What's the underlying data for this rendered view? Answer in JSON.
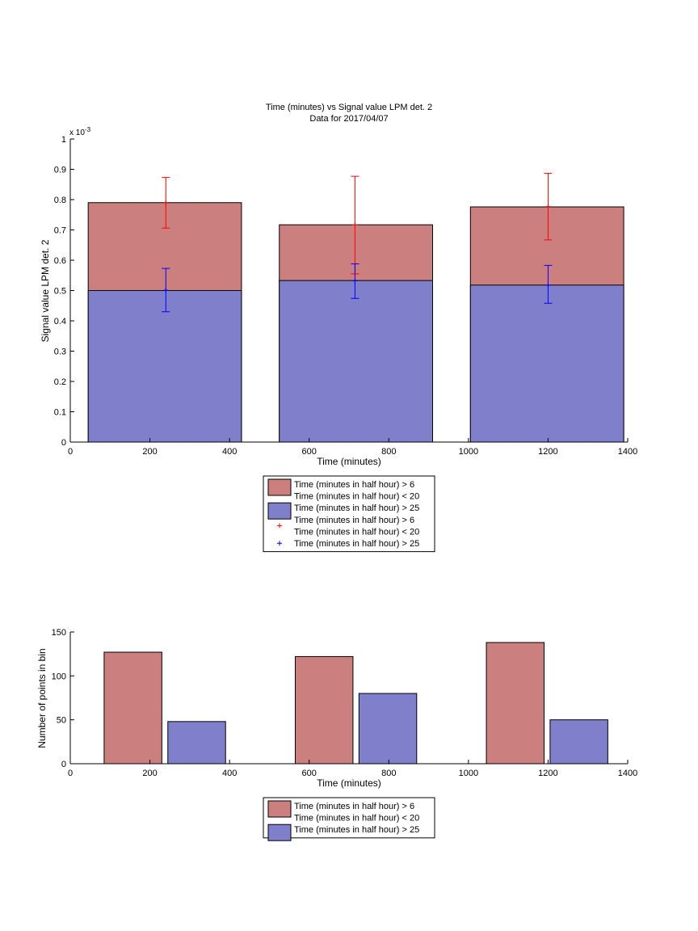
{
  "colors": {
    "red_bar": "#cc7f7f",
    "blue_bar": "#7f7fcc",
    "red_marker": "#ff0000",
    "blue_marker": "#0000ff"
  },
  "chart_data": [
    {
      "type": "bar",
      "subtype": "overlapping bars with error bars",
      "title": "Time (minutes) vs Signal value LPM det. 2",
      "subtitle": "Data for 2017/04/07",
      "xlabel": "Time (minutes)",
      "ylabel": "Signal value LPM det. 2",
      "y_multiplier_label": "x 10",
      "y_multiplier_exponent": "-3",
      "xlim": [
        0,
        1400
      ],
      "ylim": [
        0,
        1
      ],
      "x_ticks": [
        "0",
        "200",
        "400",
        "600",
        "800",
        "1000",
        "1200",
        "1400"
      ],
      "y_ticks": [
        "0",
        "0.1",
        "0.2",
        "0.3",
        "0.4",
        "0.5",
        "0.6",
        "0.7",
        "0.8",
        "0.9",
        "1"
      ],
      "grid": false,
      "legend_position": "below the axes",
      "bins": [
        {
          "x_start": 45,
          "x_end": 430
        },
        {
          "x_start": 525,
          "x_end": 910
        },
        {
          "x_start": 1005,
          "x_end": 1390
        }
      ],
      "series": [
        {
          "name": "Time (minutes in half hour) > 6\nTime (minutes in half hour) < 20",
          "color": "#cc7f7f",
          "values": [
            0.79,
            0.717,
            0.776
          ]
        },
        {
          "name": "Time (minutes in half hour) > 25",
          "color": "#7f7fcc",
          "values": [
            0.5,
            0.533,
            0.518
          ]
        }
      ],
      "error_bars": [
        {
          "name": "Time (minutes in half hour) > 6\nTime (minutes in half hour) < 20",
          "color": "#ff0000",
          "x": [
            240,
            715,
            1200
          ],
          "mean": [
            0.79,
            0.717,
            0.777
          ],
          "lower": [
            0.706,
            0.555,
            0.667
          ],
          "upper": [
            0.873,
            0.877,
            0.887
          ]
        },
        {
          "name": "Time (minutes in half hour) > 25",
          "color": "#0000ff",
          "x": [
            240,
            715,
            1200
          ],
          "mean": [
            0.501,
            0.532,
            0.518
          ],
          "lower": [
            0.43,
            0.474,
            0.458
          ],
          "upper": [
            0.573,
            0.588,
            0.583
          ]
        }
      ],
      "legend": [
        {
          "kind": "patch",
          "color": "#cc7f7f",
          "lines": [
            "Time (minutes in half hour) > 6",
            "Time (minutes in half hour) < 20"
          ]
        },
        {
          "kind": "patch",
          "color": "#7f7fcc",
          "lines": [
            "Time (minutes in half hour) > 25"
          ]
        },
        {
          "kind": "marker",
          "color": "#ff0000",
          "lines": [
            "Time (minutes in half hour) > 6",
            "Time (minutes in half hour) < 20"
          ]
        },
        {
          "kind": "marker",
          "color": "#0000ff",
          "lines": [
            "Time (minutes in half hour) > 25"
          ]
        }
      ]
    },
    {
      "type": "bar",
      "subtype": "grouped bars",
      "xlabel": "Time (minutes)",
      "ylabel": "Number of points in bin",
      "xlim": [
        0,
        1400
      ],
      "ylim": [
        0,
        150
      ],
      "x_ticks": [
        "0",
        "200",
        "400",
        "600",
        "800",
        "1000",
        "1200",
        "1400"
      ],
      "y_ticks": [
        "0",
        "50",
        "100",
        "150"
      ],
      "grid": false,
      "legend_position": "below the axes",
      "series": [
        {
          "name": "Time (minutes in half hour) > 6\nTime (minutes in half hour) < 20",
          "color": "#cc7f7f",
          "bars": [
            {
              "x_start": 85,
              "x_end": 230,
              "value": 127
            },
            {
              "x_start": 565,
              "x_end": 710,
              "value": 122
            },
            {
              "x_start": 1045,
              "x_end": 1190,
              "value": 138
            }
          ]
        },
        {
          "name": "Time (minutes in half hour) > 25",
          "color": "#7f7fcc",
          "bars": [
            {
              "x_start": 245,
              "x_end": 390,
              "value": 48
            },
            {
              "x_start": 725,
              "x_end": 870,
              "value": 80
            },
            {
              "x_start": 1205,
              "x_end": 1350,
              "value": 50
            }
          ]
        }
      ],
      "legend": [
        {
          "kind": "patch",
          "color": "#cc7f7f",
          "lines": [
            "Time (minutes in half hour) > 6",
            "Time (minutes in half hour) < 20"
          ]
        },
        {
          "kind": "patch",
          "color": "#7f7fcc",
          "lines": [
            "Time (minutes in half hour) > 25"
          ]
        }
      ]
    }
  ]
}
